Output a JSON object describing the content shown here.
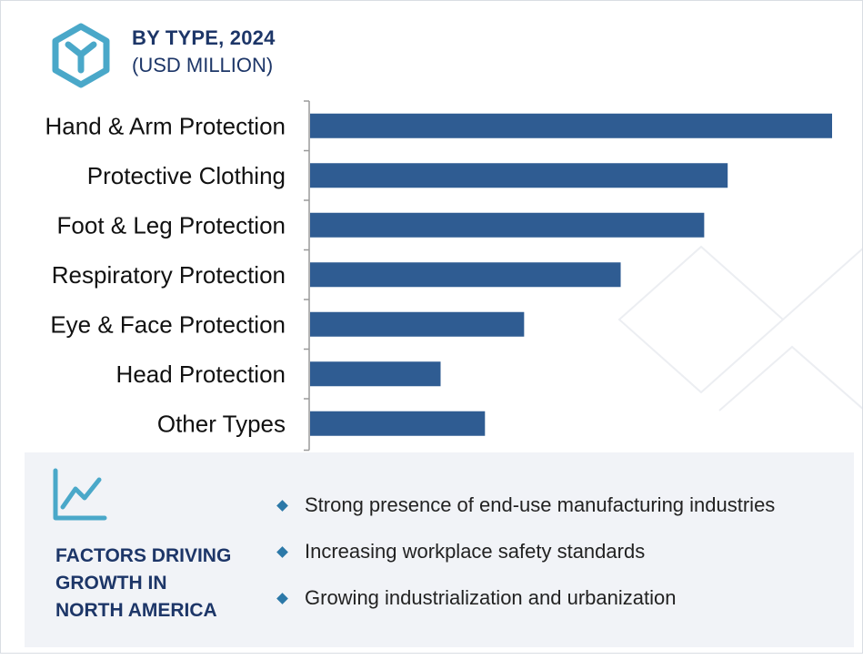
{
  "header": {
    "title": "BY TYPE, 2024",
    "subtitle": "(USD MILLION)"
  },
  "colors": {
    "bar": "#2f5c92",
    "title": "#1d3668",
    "accent": "#4aa8c9",
    "panel": "#f1f3f7"
  },
  "icons": {
    "logo": "hexagon-y-logo-icon",
    "trend": "line-chart-trend-icon",
    "bullet": "diamond-bullet-icon"
  },
  "chart_data": {
    "type": "bar",
    "orientation": "horizontal",
    "categories": [
      "Hand & Arm Protection",
      "Protective Clothing",
      "Foot & Leg Protection",
      "Respiratory Protection",
      "Eye & Face Protection",
      "Head Protection",
      "Other Types"
    ],
    "values": [
      100,
      80,
      75.5,
      59.5,
      41,
      25,
      33.5
    ],
    "xlim": [
      0,
      100
    ],
    "grid": false,
    "legend": "none",
    "title": "BY TYPE, 2024",
    "xlabel": "",
    "ylabel": ""
  },
  "factors": {
    "title_lines": [
      "FACTORS DRIVING",
      "GROWTH IN",
      "NORTH AMERICA"
    ],
    "items": [
      "Strong presence of end-use manufacturing industries",
      "Increasing workplace safety standards",
      "Growing industrialization and urbanization"
    ]
  }
}
